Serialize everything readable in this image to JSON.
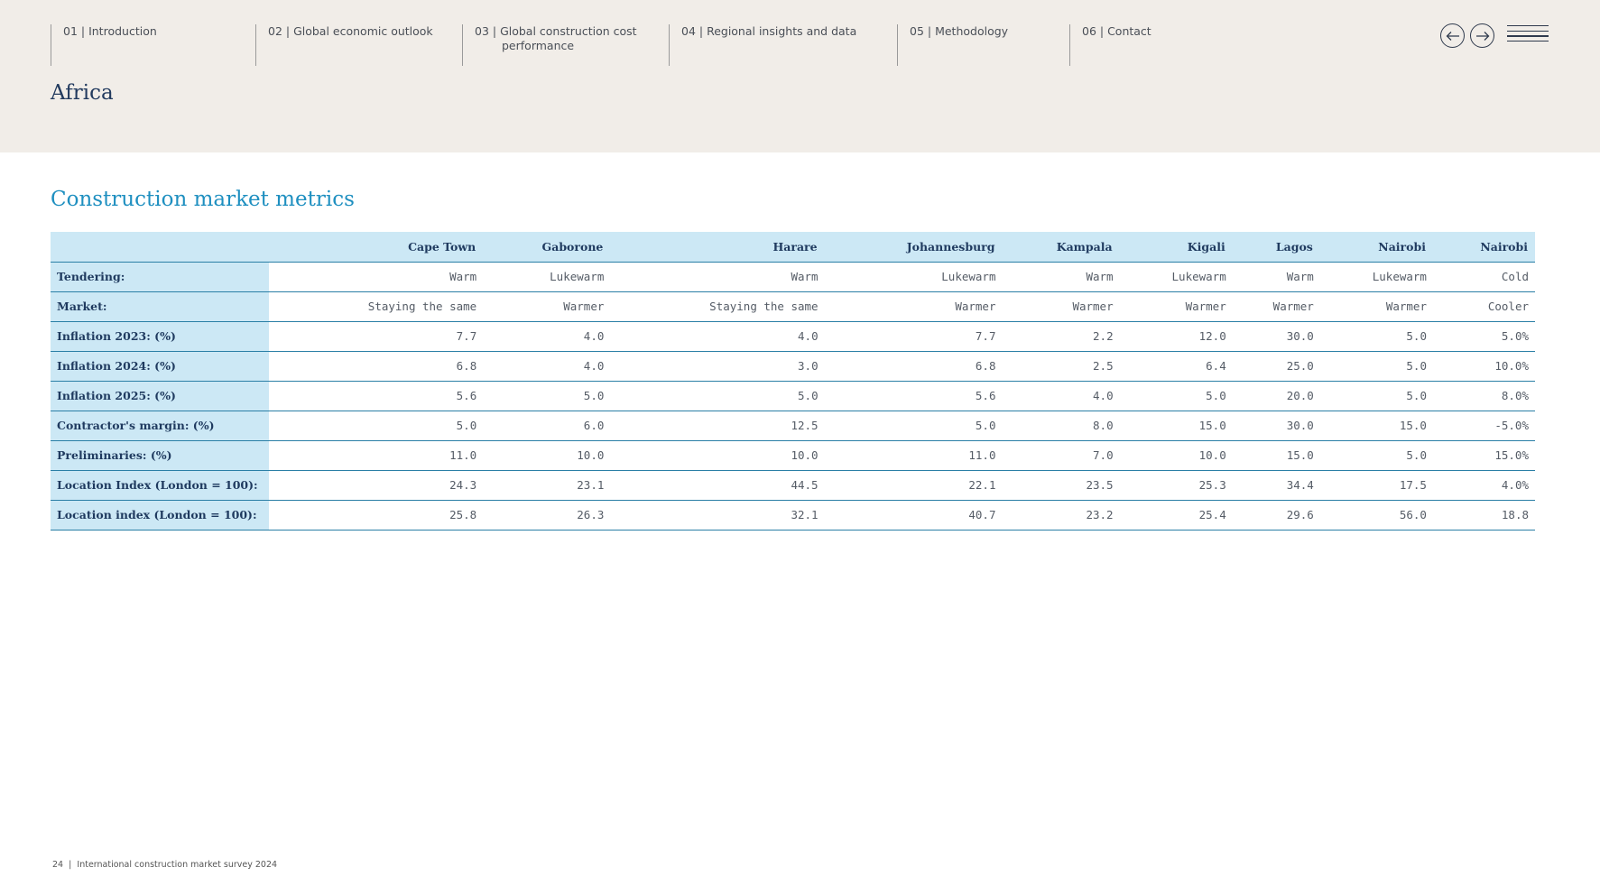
{
  "nav": {
    "items": [
      {
        "label": "01 | Introduction"
      },
      {
        "label": "02 | Global economic outlook"
      },
      {
        "label": "03 | Global construction cost",
        "label2": "performance"
      },
      {
        "label": "04 | Regional insights and data"
      },
      {
        "label": "05 | Methodology"
      },
      {
        "label": "06 | Contact"
      }
    ],
    "prev_icon": "arrow-left-icon",
    "next_icon": "arrow-right-icon",
    "menu_icon": "hamburger-menu-icon"
  },
  "page_title": "Africa",
  "section_title": "Construction market metrics",
  "table": {
    "columns": [
      "Cape Town",
      "Gaborone",
      "Harare",
      "Johannesburg",
      "Kampala",
      "Kigali",
      "Lagos",
      "Nairobi",
      "Nairobi"
    ],
    "rows": [
      {
        "label": "Tendering:",
        "values": [
          "Warm",
          "Lukewarm",
          "Warm",
          "Lukewarm",
          "Warm",
          "Lukewarm",
          "Warm",
          "Lukewarm",
          "Cold"
        ]
      },
      {
        "label": "Market:",
        "values": [
          "Staying the same",
          "Warmer",
          "Staying the same",
          "Warmer",
          "Warmer",
          "Warmer",
          "Warmer",
          "Warmer",
          "Cooler"
        ]
      },
      {
        "label": "Inflation 2023: (%)",
        "values": [
          "7.7",
          "4.0",
          "4.0",
          "7.7",
          "2.2",
          "12.0",
          "30.0",
          "5.0",
          "5.0%"
        ]
      },
      {
        "label": "Inflation 2024: (%)",
        "values": [
          "6.8",
          "4.0",
          "3.0",
          "6.8",
          "2.5",
          "6.4",
          "25.0",
          "5.0",
          "10.0%"
        ]
      },
      {
        "label": "Inflation 2025: (%)",
        "values": [
          "5.6",
          "5.0",
          "5.0",
          "5.6",
          "4.0",
          "5.0",
          "20.0",
          "5.0",
          "8.0%"
        ]
      },
      {
        "label": "Contractor's margin: (%)",
        "values": [
          "5.0",
          "6.0",
          "12.5",
          "5.0",
          "8.0",
          "15.0",
          "30.0",
          "15.0",
          "-5.0%"
        ]
      },
      {
        "label": "Preliminaries: (%)",
        "values": [
          "11.0",
          "10.0",
          "10.0",
          "11.0",
          "7.0",
          "10.0",
          "15.0",
          "5.0",
          "15.0%"
        ]
      },
      {
        "label": "Location Index (London = 100):",
        "values": [
          "24.3",
          "23.1",
          "44.5",
          "22.1",
          "23.5",
          "25.3",
          "34.4",
          "17.5",
          "4.0%"
        ]
      },
      {
        "label": "Location index (London = 100):",
        "values": [
          "25.8",
          "26.3",
          "32.1",
          "40.7",
          "23.2",
          "25.4",
          "29.6",
          "56.0",
          "18.8"
        ]
      }
    ]
  },
  "footer": {
    "page_number": "24",
    "separator": "|",
    "text": "International construction market survey 2024"
  }
}
